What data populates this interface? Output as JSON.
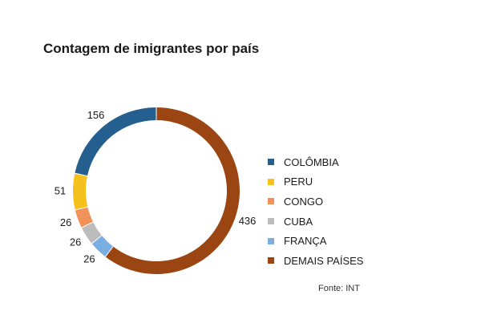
{
  "chart_data": {
    "type": "pie",
    "title": "Contagem de imigrantes por país",
    "source": "Fonte: INT",
    "categories": [
      "COLÔMBIA",
      "PERU",
      "CONGO",
      "CUBA",
      "FRANÇA",
      "DEMAIS PAÍSES"
    ],
    "values": [
      156,
      51,
      26,
      26,
      26,
      436
    ],
    "colors": [
      "#245f8f",
      "#f5c11a",
      "#f1925a",
      "#bcbcbc",
      "#79aee0",
      "#9a4512"
    ],
    "donut": true,
    "legend_position": "right"
  }
}
